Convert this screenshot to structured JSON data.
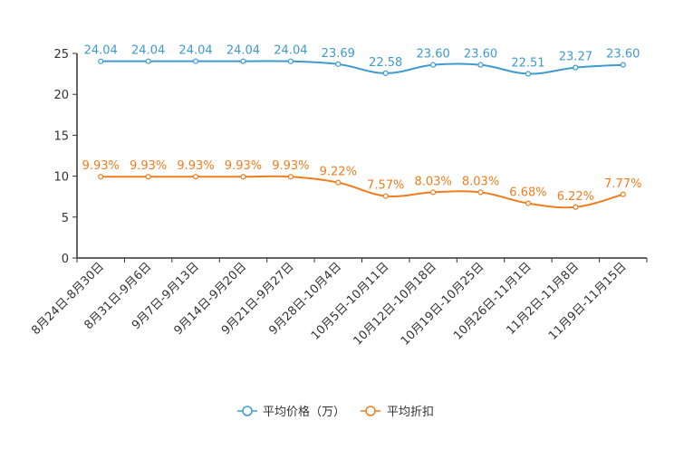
{
  "chart_data": {
    "type": "line",
    "categories": [
      "8月24日-8月30日",
      "8月31日-9月6日",
      "9月7日-9月13日",
      "9月14日-9月20日",
      "9月21日-9月27日",
      "9月28日-10月4日",
      "10月5日-10月11日",
      "10月12日-10月18日",
      "10月19日-10月25日",
      "10月26日-11月1日",
      "11月2日-11月8日",
      "11月9日-11月15日"
    ],
    "ylim": [
      0,
      25
    ],
    "yticks": [
      0,
      5,
      10,
      15,
      20,
      25
    ],
    "series": [
      {
        "name": "平均价格（万）",
        "color": "#3e9bd0",
        "values": [
          24.04,
          24.04,
          24.04,
          24.04,
          24.04,
          23.69,
          22.58,
          23.6,
          23.6,
          22.51,
          23.27,
          23.6
        ],
        "labels": [
          "24.04",
          "24.04",
          "24.04",
          "24.04",
          "24.04",
          "23.69",
          "22.58",
          "23.60",
          "23.60",
          "22.51",
          "23.27",
          "23.60"
        ]
      },
      {
        "name": "平均折扣",
        "color": "#f07d1e",
        "values": [
          9.93,
          9.93,
          9.93,
          9.93,
          9.93,
          9.22,
          7.57,
          8.03,
          8.03,
          6.68,
          6.22,
          7.77
        ],
        "labels": [
          "9.93%",
          "9.93%",
          "9.93%",
          "9.93%",
          "9.93%",
          "9.22%",
          "7.57%",
          "8.03%",
          "8.03%",
          "6.68%",
          "6.22%",
          "7.77%"
        ]
      }
    ],
    "legend_position": "bottom-center",
    "grid": false
  }
}
